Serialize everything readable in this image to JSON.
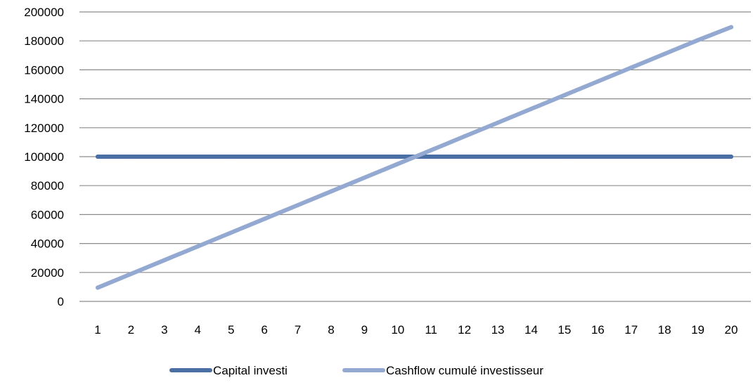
{
  "chart_data": {
    "type": "line",
    "x": [
      1,
      2,
      3,
      4,
      5,
      6,
      7,
      8,
      9,
      10,
      11,
      12,
      13,
      14,
      15,
      16,
      17,
      18,
      19,
      20
    ],
    "y_ticks": [
      0,
      20000,
      40000,
      60000,
      80000,
      100000,
      120000,
      140000,
      160000,
      180000,
      200000
    ],
    "ylim": [
      0,
      200000
    ],
    "grid": "horizontal",
    "legend_position": "bottom",
    "series": [
      {
        "name": "Capital investi",
        "color": "#4a6fa5",
        "values": [
          100000,
          100000,
          100000,
          100000,
          100000,
          100000,
          100000,
          100000,
          100000,
          100000,
          100000,
          100000,
          100000,
          100000,
          100000,
          100000,
          100000,
          100000,
          100000,
          100000
        ]
      },
      {
        "name": "Cashflow cumulé investisseur",
        "color": "#93a9d1",
        "values": [
          9500,
          19000,
          28500,
          38000,
          47500,
          57000,
          66500,
          76000,
          85500,
          95000,
          104500,
          114000,
          123500,
          133000,
          142500,
          152000,
          161500,
          171000,
          180500,
          189500
        ]
      }
    ]
  }
}
